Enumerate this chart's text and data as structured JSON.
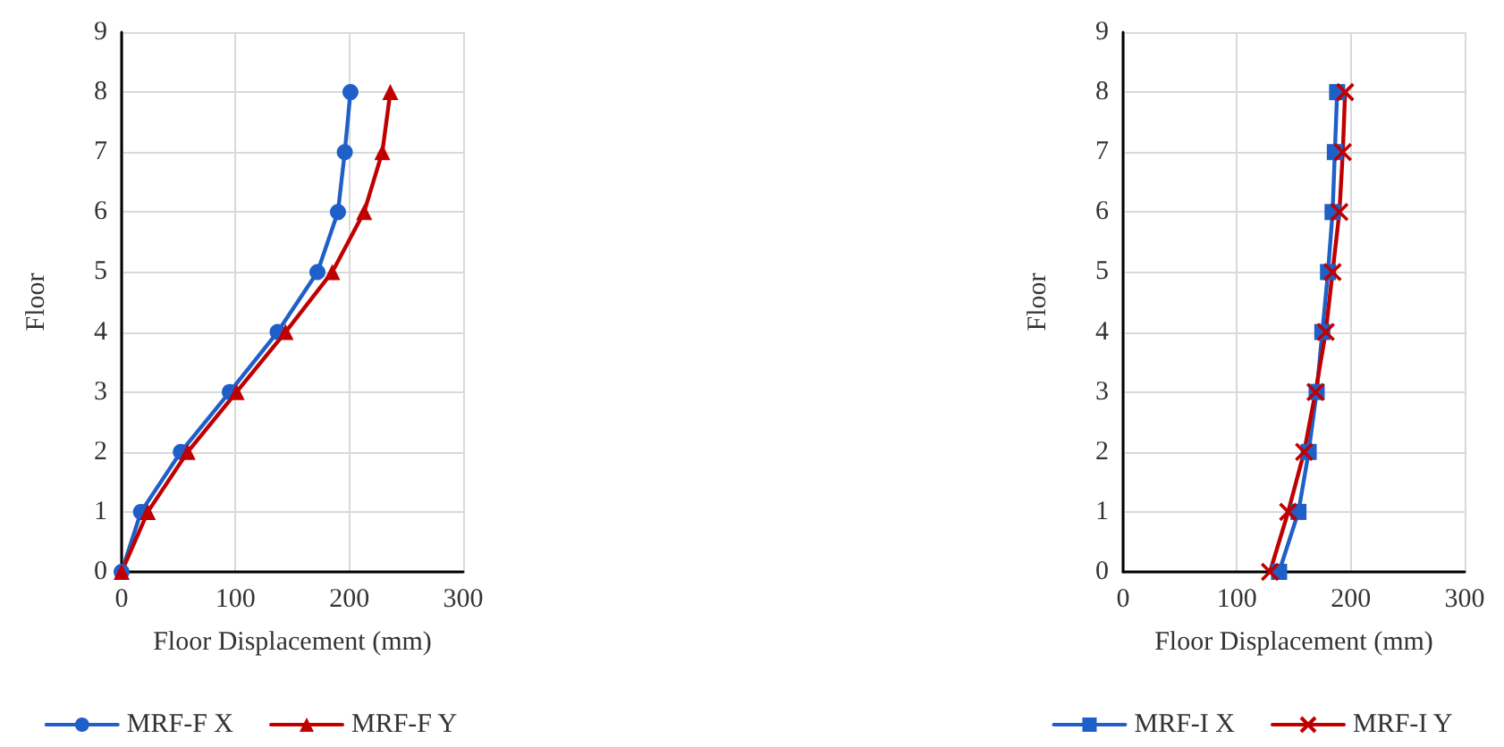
{
  "chart_data": [
    {
      "type": "line",
      "xlabel": "Floor Displacement (mm)",
      "ylabel": "Floor",
      "xlim": [
        0,
        300
      ],
      "xticks": [
        0,
        100,
        200,
        300
      ],
      "ylim": [
        0,
        9
      ],
      "yticks": [
        0,
        1,
        2,
        3,
        4,
        5,
        6,
        7,
        8,
        9
      ],
      "grid": true,
      "legend": "bottom",
      "series": [
        {
          "name": "MRF-F X",
          "color": "#1f5fc8",
          "marker": "circle",
          "x": [
            0,
            17,
            52,
            95,
            137,
            172,
            190,
            196,
            201
          ],
          "values": [
            0,
            1,
            2,
            3,
            4,
            5,
            6,
            7,
            8
          ]
        },
        {
          "name": "MRF-F Y",
          "color": "#c00000",
          "marker": "triangle",
          "x": [
            0,
            23,
            58,
            101,
            144,
            185,
            213,
            229,
            236
          ],
          "values": [
            0,
            1,
            2,
            3,
            4,
            5,
            6,
            7,
            8
          ]
        }
      ]
    },
    {
      "type": "line",
      "xlabel": "Floor Displacement (mm)",
      "ylabel": "Floor",
      "xlim": [
        0,
        300
      ],
      "xticks": [
        0,
        100,
        200,
        300
      ],
      "ylim": [
        0,
        9
      ],
      "yticks": [
        0,
        1,
        2,
        3,
        4,
        5,
        6,
        7,
        8,
        9
      ],
      "grid": true,
      "legend": "bottom",
      "series": [
        {
          "name": "MRF-I X",
          "color": "#1f5fc8",
          "marker": "square",
          "x": [
            137,
            154,
            163,
            170,
            175,
            180,
            184,
            186,
            188
          ],
          "values": [
            0,
            1,
            2,
            3,
            4,
            5,
            6,
            7,
            8
          ]
        },
        {
          "name": "MRF-I Y",
          "color": "#c00000",
          "marker": "cross",
          "x": [
            129,
            145,
            159,
            169,
            178,
            184,
            190,
            193,
            195
          ],
          "values": [
            0,
            1,
            2,
            3,
            4,
            5,
            6,
            7,
            8
          ]
        }
      ]
    }
  ]
}
